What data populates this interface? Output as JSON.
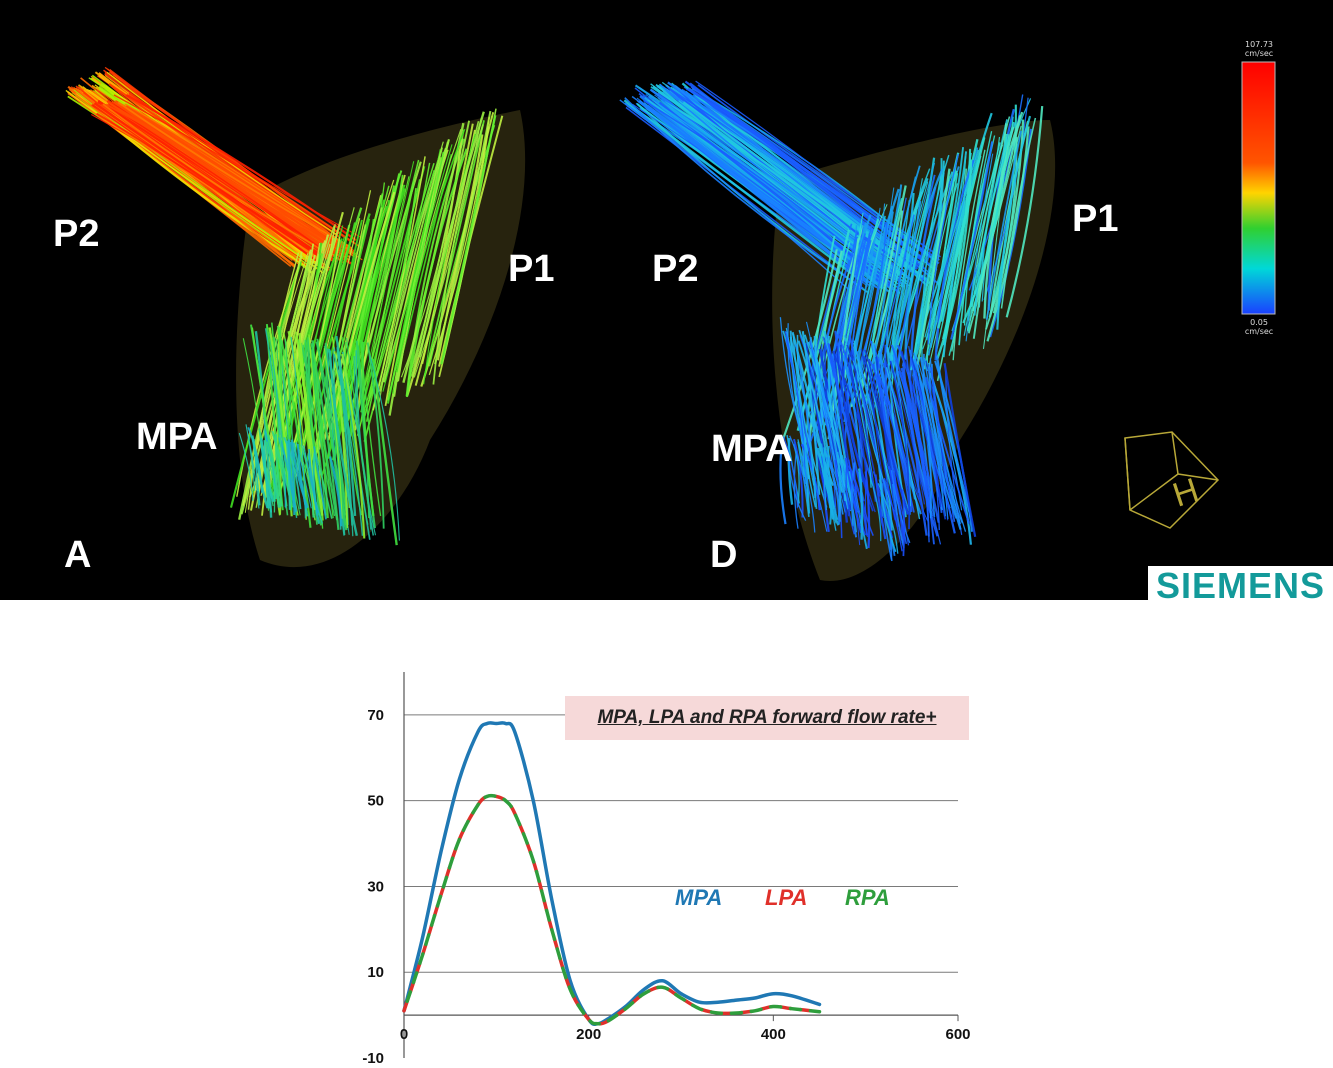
{
  "panels": {
    "left": {
      "letter": "A",
      "vessel_labels": {
        "p2": "P2",
        "p1": "P1",
        "mpa": "MPA"
      }
    },
    "right": {
      "letter": "D",
      "vessel_labels": {
        "p2": "P2",
        "p1": "P1",
        "mpa": "MPA"
      }
    }
  },
  "color_scale": {
    "max_value": "107.73",
    "max_unit": "cm/sec",
    "min_value": "0.05",
    "min_unit": "cm/sec",
    "colors": [
      "#ff0000",
      "#ff6600",
      "#ffd200",
      "#30d030",
      "#00d8d8",
      "#1e6cff",
      "#1030e8"
    ]
  },
  "logo": {
    "text": "SIEMENS",
    "color": "#139a9a"
  },
  "orientation_cube": {
    "letter": "H"
  },
  "chart_data": {
    "type": "line",
    "title": "MPA, LPA  and RPA forward flow rate+",
    "xlabel": "",
    "ylabel": "",
    "xlim": [
      0,
      600
    ],
    "ylim": [
      -10,
      80
    ],
    "x_ticks": [
      0,
      200,
      400,
      600
    ],
    "y_ticks": [
      -10,
      10,
      30,
      50,
      70
    ],
    "grid": "horizontal",
    "legend_position": "center-right",
    "series": [
      {
        "name": "MPA",
        "color": "#1f78b4",
        "dash": "solid",
        "x": [
          0,
          20,
          40,
          60,
          80,
          90,
          100,
          110,
          120,
          140,
          160,
          180,
          200,
          210,
          220,
          240,
          260,
          280,
          300,
          320,
          340,
          360,
          380,
          400,
          420,
          450
        ],
        "y": [
          1,
          18,
          38,
          55,
          66,
          68,
          68,
          68,
          66,
          50,
          27,
          8,
          -1,
          -2,
          -1,
          2,
          6,
          8,
          5,
          3,
          3,
          3.5,
          4,
          5,
          4.5,
          2.5
        ]
      },
      {
        "name": "LPA",
        "color": "#e0302a",
        "dash": "dashed",
        "x": [
          0,
          20,
          40,
          60,
          80,
          90,
          100,
          110,
          120,
          140,
          160,
          180,
          200,
          210,
          220,
          240,
          260,
          280,
          300,
          320,
          340,
          360,
          380,
          400,
          420,
          450
        ],
        "y": [
          1,
          14,
          28,
          41,
          49,
          51,
          51,
          50,
          47,
          36,
          20,
          6,
          -1,
          -2,
          -1.5,
          1.5,
          5,
          6.5,
          4,
          1.5,
          0.5,
          0.5,
          1,
          2,
          1.5,
          0.8
        ]
      },
      {
        "name": "RPA",
        "color": "#2e9e3c",
        "dash": "dashed",
        "x": [
          0,
          20,
          40,
          60,
          80,
          90,
          100,
          110,
          120,
          140,
          160,
          180,
          200,
          210,
          220,
          240,
          260,
          280,
          300,
          320,
          340,
          360,
          380,
          400,
          420,
          450
        ],
        "y": [
          1,
          14,
          28,
          41,
          49,
          51,
          51,
          50,
          47,
          36,
          20,
          6,
          -1,
          -2,
          -1.5,
          1.5,
          5,
          6.5,
          4,
          1.5,
          0.5,
          0.5,
          1,
          2,
          1.5,
          0.8
        ]
      }
    ]
  }
}
